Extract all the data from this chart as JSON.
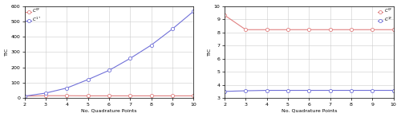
{
  "x": [
    2,
    3,
    4,
    5,
    6,
    7,
    8,
    9,
    10
  ],
  "left_red": [
    12,
    15,
    15,
    14,
    14,
    14,
    14,
    14,
    14
  ],
  "left_blue": [
    12,
    32,
    65,
    120,
    180,
    258,
    345,
    450,
    565
  ],
  "right_red": [
    9.3,
    8.2,
    8.2,
    8.2,
    8.2,
    8.2,
    8.2,
    8.2,
    8.2
  ],
  "right_blue": [
    3.5,
    3.55,
    3.58,
    3.58,
    3.58,
    3.58,
    3.58,
    3.58,
    3.58
  ],
  "left_ylim": [
    0,
    600
  ],
  "left_yticks": [
    0,
    100,
    200,
    300,
    400,
    500,
    600
  ],
  "right_ylim": [
    3,
    10
  ],
  "right_yticks": [
    3,
    4,
    5,
    6,
    7,
    8,
    9,
    10
  ],
  "xlim": [
    2,
    10
  ],
  "xticks": [
    2,
    3,
    4,
    5,
    6,
    7,
    8,
    9,
    10
  ],
  "xlabel": "No. Quadrature Points",
  "ylabel": "TIC",
  "red_color": "#e08080",
  "blue_color": "#7070d8",
  "left_legend_red": "$C^{0^p}$",
  "left_legend_blue": "$C^{1^+}$",
  "right_legend_red": "$C^{0^p}$",
  "right_legend_blue": "$C^{1^p}$",
  "grid_color": "#cccccc",
  "marker_size": 3,
  "linewidth": 0.8,
  "tick_fontsize": 4.5,
  "label_fontsize": 4.5,
  "legend_fontsize": 4.0
}
